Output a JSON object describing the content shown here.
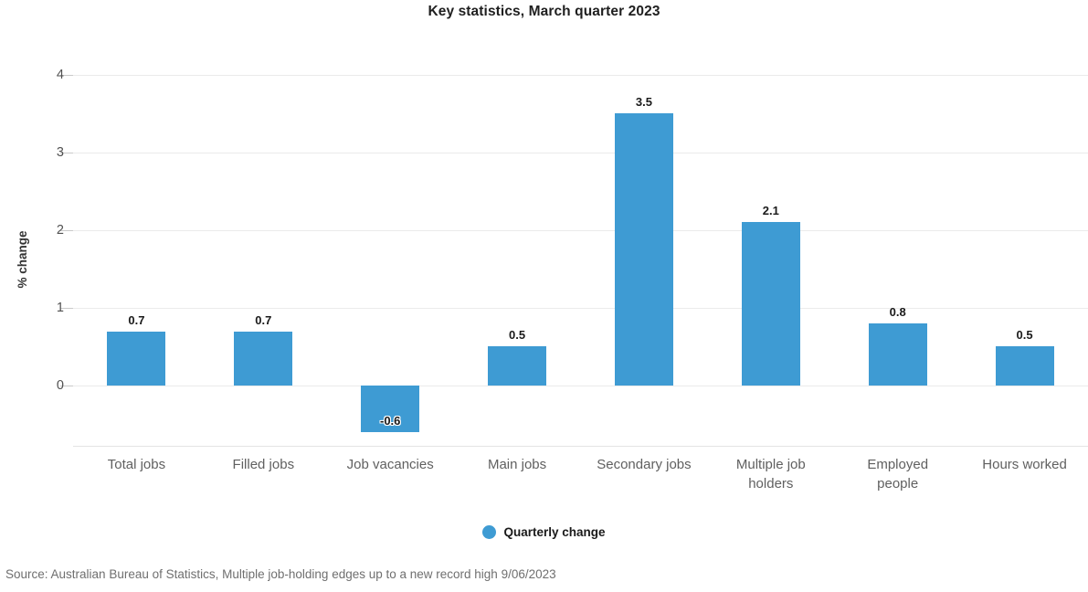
{
  "chart_data": {
    "type": "bar",
    "title": "Key statistics, March quarter 2023",
    "categories": [
      "Total jobs",
      "Filled jobs",
      "Job vacancies",
      "Main jobs",
      "Secondary jobs",
      "Multiple job holders",
      "Employed people",
      "Hours worked"
    ],
    "values": [
      0.7,
      0.7,
      -0.6,
      0.5,
      3.5,
      2.1,
      0.8,
      0.5
    ],
    "series_name": "Quarterly change",
    "xlabel": "",
    "ylabel": "% change",
    "ylim": [
      -0.78,
      4.2
    ],
    "yticks": [
      0,
      1,
      2,
      3,
      4
    ],
    "bar_color": "#3e9bd3",
    "grid": true,
    "legend_position": "bottom",
    "source": "Source: Australian Bureau of Statistics, Multiple job-holding edges up to a new record high 9/06/2023"
  }
}
